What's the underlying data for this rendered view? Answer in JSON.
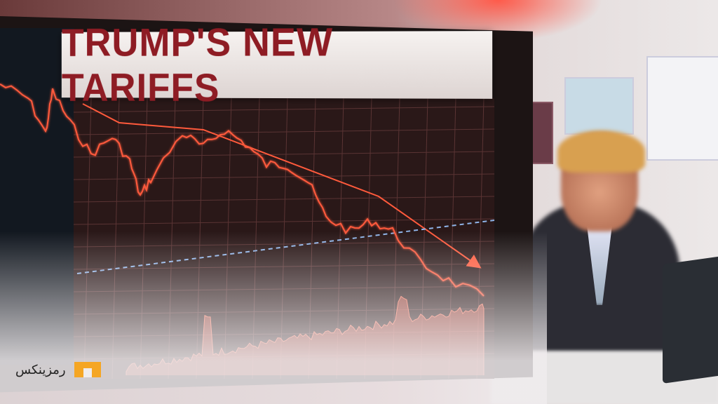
{
  "headline": "TRUMP'S NEW TARIFFS",
  "logo": {
    "text": "رمزینکس",
    "brand_color": "#f5a623"
  },
  "colors": {
    "headline": "#8e1c24",
    "chart_line": "#ff5a3c",
    "baseline": "#8fb4e8"
  }
}
